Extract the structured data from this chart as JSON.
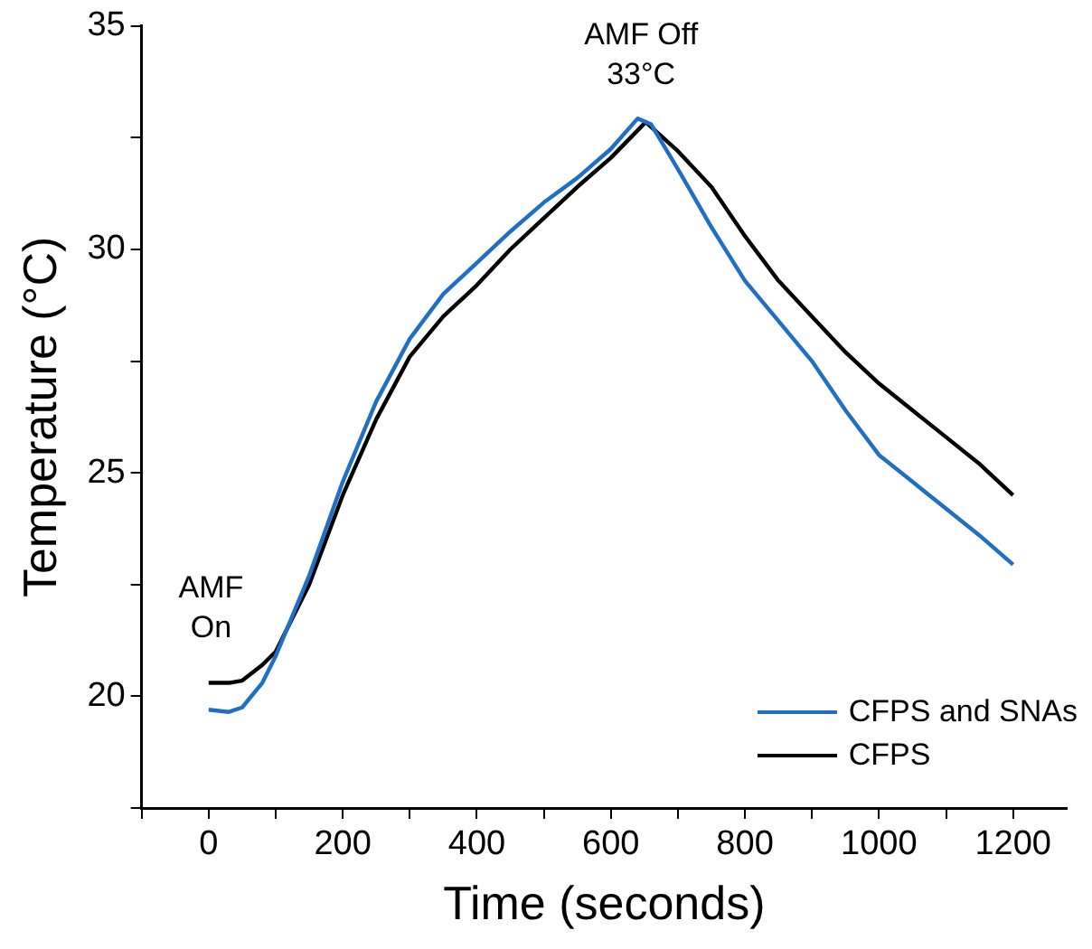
{
  "chart_data": {
    "type": "line",
    "xlabel": "Time (seconds)",
    "ylabel": "Temperature (°C)",
    "xlim": [
      -100,
      1280
    ],
    "ylim": [
      17.5,
      35
    ],
    "xticks": [
      {
        "value": -100,
        "label": null
      },
      0,
      {
        "value": 100,
        "label": null
      },
      200,
      {
        "value": 300,
        "label": null
      },
      400,
      {
        "value": 500,
        "label": null
      },
      600,
      {
        "value": 700,
        "label": null
      },
      800,
      {
        "value": 900,
        "label": null
      },
      1000,
      {
        "value": 1100,
        "label": null
      },
      1200
    ],
    "yticks": [
      {
        "value": 17.5,
        "label": null
      },
      20,
      {
        "value": 22.5,
        "label": null
      },
      25,
      {
        "value": 27.5,
        "label": null
      },
      30,
      {
        "value": 32.5,
        "label": null
      },
      35
    ],
    "grid": false,
    "legend": "bottom right",
    "marker": "none",
    "line_style": "solid",
    "annotations": [
      {
        "text": "AMF Off 33°C",
        "x": 645,
        "y": 32.9
      },
      "AMF On"
    ],
    "series": [
      {
        "name": "CFPS and SNAs",
        "color": "#1f6fc6",
        "x": [
          0,
          30,
          50,
          80,
          100,
          150,
          200,
          250,
          300,
          350,
          400,
          450,
          500,
          550,
          600,
          640,
          660,
          700,
          750,
          800,
          850,
          900,
          950,
          1000,
          1050,
          1100,
          1150,
          1200
        ],
        "values": [
          19.7,
          19.65,
          19.75,
          20.3,
          20.9,
          22.7,
          24.8,
          26.6,
          28.0,
          29.0,
          29.7,
          30.4,
          31.05,
          31.6,
          32.25,
          32.93,
          32.8,
          31.8,
          30.5,
          29.3,
          28.4,
          27.5,
          26.4,
          25.4,
          24.8,
          24.2,
          23.6,
          22.95
        ]
      },
      {
        "name": "CFPS",
        "color": "#000000",
        "x": [
          0,
          30,
          50,
          80,
          100,
          150,
          200,
          250,
          300,
          350,
          400,
          450,
          500,
          550,
          600,
          652,
          700,
          750,
          800,
          850,
          900,
          950,
          1000,
          1050,
          1100,
          1150,
          1200
        ],
        "values": [
          20.3,
          20.3,
          20.35,
          20.7,
          21.0,
          22.5,
          24.5,
          26.2,
          27.6,
          28.5,
          29.2,
          30.0,
          30.7,
          31.4,
          32.05,
          32.85,
          32.2,
          31.4,
          30.3,
          29.3,
          28.5,
          27.7,
          27.0,
          26.4,
          25.8,
          25.2,
          24.5
        ]
      }
    ]
  }
}
